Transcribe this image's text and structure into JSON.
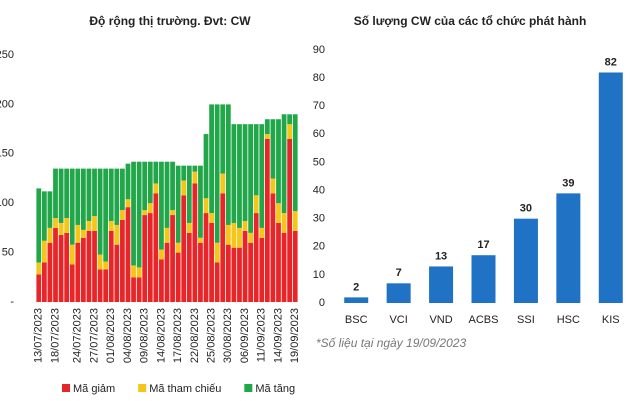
{
  "chart_data": [
    {
      "type": "bar",
      "stacked": true,
      "title": "Độ rộng thị trường. Đvt: CW",
      "categories": [
        "13/07/2023",
        null,
        null,
        "18/07/2023",
        null,
        null,
        null,
        "24/07/2023",
        null,
        null,
        "27/07/2023",
        null,
        null,
        "01/08/2023",
        null,
        null,
        "04/08/2023",
        null,
        null,
        "09/08/2023",
        null,
        null,
        "14/08/2023",
        null,
        null,
        "17/08/2023",
        null,
        null,
        "22/08/2023",
        null,
        null,
        "25/08/2023",
        null,
        null,
        "30/08/2023",
        null,
        null,
        "06/09/2023",
        null,
        null,
        "11/09/2023",
        null,
        null,
        "14/09/2023",
        null,
        null,
        "19/09/2023"
      ],
      "series": [
        {
          "name": "Mã giảm",
          "color": "#e8262a",
          "values": [
            28,
            40,
            60,
            75,
            68,
            70,
            38,
            60,
            65,
            72,
            72,
            33,
            33,
            72,
            58,
            83,
            96,
            25,
            25,
            88,
            90,
            110,
            43,
            60,
            88,
            50,
            108,
            70,
            120,
            60,
            90,
            80,
            40,
            110,
            58,
            55,
            55,
            72,
            60,
            90,
            65,
            165,
            110,
            80,
            70,
            165,
            72
          ]
        },
        {
          "name": "Mã tham chiếu",
          "color": "#f5c518",
          "values": [
            12,
            22,
            15,
            10,
            12,
            15,
            20,
            18,
            8,
            10,
            15,
            15,
            8,
            10,
            20,
            10,
            8,
            12,
            10,
            5,
            10,
            10,
            10,
            15,
            5,
            10,
            15,
            10,
            12,
            5,
            15,
            10,
            20,
            20,
            20,
            25,
            20,
            10,
            10,
            18,
            10,
            5,
            15,
            20,
            20,
            15,
            20
          ]
        },
        {
          "name": "Mã tăng",
          "color": "#22a64a",
          "values": [
            75,
            50,
            37,
            50,
            55,
            50,
            77,
            57,
            62,
            53,
            48,
            87,
            94,
            53,
            57,
            42,
            36,
            105,
            107,
            49,
            42,
            22,
            89,
            67,
            49,
            78,
            15,
            58,
            6,
            73,
            65,
            110,
            140,
            70,
            122,
            100,
            105,
            98,
            110,
            72,
            105,
            15,
            60,
            85,
            100,
            10,
            98
          ]
        }
      ],
      "ylim": [
        0,
        250
      ],
      "yticks": [
        {
          "value": 0,
          "label": "-"
        },
        50,
        100,
        150,
        200,
        250
      ],
      "legend": "bottom"
    },
    {
      "type": "bar",
      "title": "Số lượng CW của các tổ chức phát hành",
      "categories": [
        "BSC",
        "VCI",
        "VND",
        "ACBS",
        "SSI",
        "HSC",
        "KIS"
      ],
      "values": [
        2,
        7,
        13,
        17,
        30,
        39,
        82
      ],
      "color": "#1f72c4",
      "ylim": [
        0,
        90
      ],
      "yticks": [
        0,
        10,
        20,
        30,
        40,
        50,
        60,
        70,
        80,
        90
      ],
      "annotation": "*Số liệu tại ngày 19/09/2023"
    }
  ]
}
